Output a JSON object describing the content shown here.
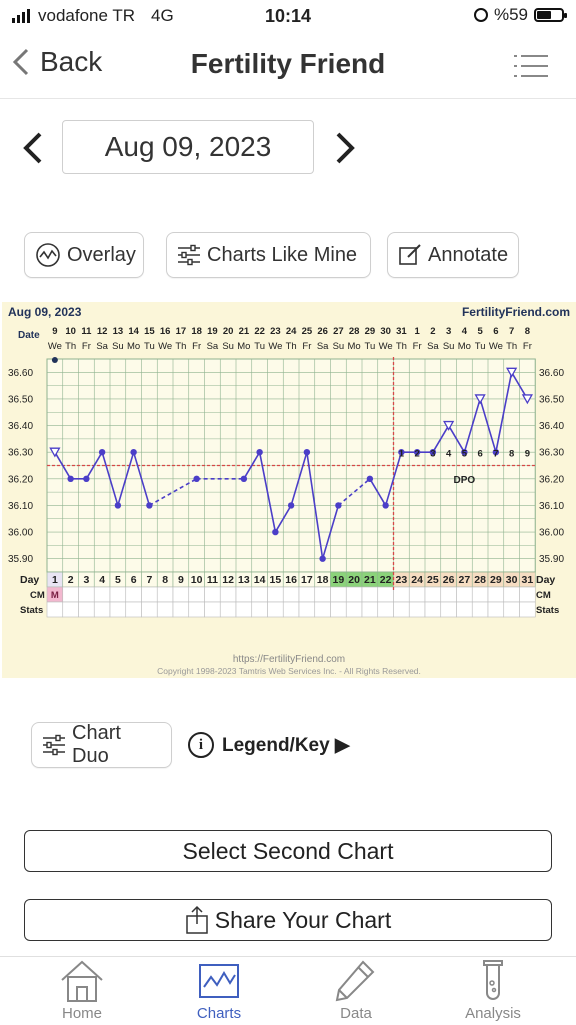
{
  "status": {
    "carrier": "vodafone TR",
    "network": "4G",
    "time": "10:14",
    "battery": "%59",
    "battery_level": 0.59
  },
  "nav": {
    "back_label": "Back",
    "title": "Fertility Friend",
    "menu_icon": "menu-icon"
  },
  "date_nav": {
    "date": "Aug 09, 2023",
    "prev_icon": "chevron-left-icon",
    "next_icon": "chevron-right-icon"
  },
  "toolbar": {
    "overlay": "Overlay",
    "charts_like_mine": "Charts Like Mine",
    "annotate": "Annotate"
  },
  "chart_data": {
    "type": "line",
    "title": "Aug 09, 2023",
    "brand": "FertilityFriend.com",
    "date_row_label": "Date",
    "dates": [
      "9",
      "10",
      "11",
      "12",
      "13",
      "14",
      "15",
      "16",
      "17",
      "18",
      "19",
      "20",
      "21",
      "22",
      "23",
      "24",
      "25",
      "26",
      "27",
      "28",
      "29",
      "30",
      "31",
      "1",
      "2",
      "3",
      "4",
      "5",
      "6",
      "7",
      "8"
    ],
    "weekdays": [
      "We",
      "Th",
      "Fr",
      "Sa",
      "Su",
      "Mo",
      "Tu",
      "We",
      "Th",
      "Fr",
      "Sa",
      "Su",
      "Mo",
      "Tu",
      "We",
      "Th",
      "Fr",
      "Sa",
      "Su",
      "Mo",
      "Tu",
      "We",
      "Th",
      "Fr",
      "Sa",
      "Su",
      "Mo",
      "Tu",
      "We",
      "Th",
      "Fr"
    ],
    "yticks": [
      "36.60",
      "36.50",
      "36.40",
      "36.30",
      "36.20",
      "36.10",
      "36.00",
      "35.90"
    ],
    "ylim": [
      35.85,
      36.65
    ],
    "temps": [
      36.3,
      36.2,
      36.2,
      36.3,
      36.1,
      36.3,
      36.1,
      null,
      null,
      36.2,
      null,
      null,
      36.2,
      36.3,
      36.0,
      36.1,
      36.3,
      35.9,
      36.1,
      null,
      36.2,
      36.1,
      36.3,
      36.3,
      36.3,
      36.4,
      36.3,
      36.5,
      36.3,
      36.6,
      36.5
    ],
    "point_markers": [
      "triangle",
      "dot",
      "dot",
      "dot",
      "dot",
      "dot",
      "dot",
      "none",
      "none",
      "dot",
      "none",
      "none",
      "dot",
      "dot",
      "dot",
      "dot",
      "dot",
      "dot",
      "dot",
      "none",
      "dot",
      "dot",
      "dot",
      "dot",
      "dot",
      "triangle",
      "dot",
      "triangle",
      "dot",
      "triangle",
      "triangle"
    ],
    "coverline": 36.25,
    "ovulation_day": 22,
    "intercourse_days": [
      9
    ],
    "dpo": [
      "1",
      "2",
      "3",
      "4",
      "5",
      "6",
      "7",
      "8",
      "9"
    ],
    "dpo_label": "DPO",
    "row_labels": {
      "day": "Day",
      "cm": "CM",
      "stats": "Stats"
    },
    "cm": [
      "M"
    ],
    "day_highlights": {
      "menses": [
        1
      ],
      "fertile": [
        19,
        20,
        21,
        22
      ],
      "luteal_start": 23
    },
    "colors": {
      "line": "#4b3ec8",
      "coverline": "#d64848",
      "ovulation": "#d64848",
      "fertile": "#8bd37a",
      "menses": "#f2b8cf",
      "luteal": "#f6ddc2",
      "background": "#fbf6d9",
      "grid": "#8fb38f"
    },
    "footer_url": "https://FertilityFriend.com",
    "footer_copyright": "Copyright 1998-2023 Tamtris Web Services Inc. - All Rights Reserved."
  },
  "legend": {
    "chart_duo": "Chart Duo",
    "legend_key": "Legend/Key ▶"
  },
  "buttons": {
    "select_second": "Select Second Chart",
    "share": "Share Your Chart"
  },
  "tabs": [
    {
      "label": "Home",
      "icon": "home-icon"
    },
    {
      "label": "Charts",
      "icon": "chart-icon",
      "active": true
    },
    {
      "label": "Data",
      "icon": "pencil-icon"
    },
    {
      "label": "Analysis",
      "icon": "flask-icon"
    }
  ]
}
